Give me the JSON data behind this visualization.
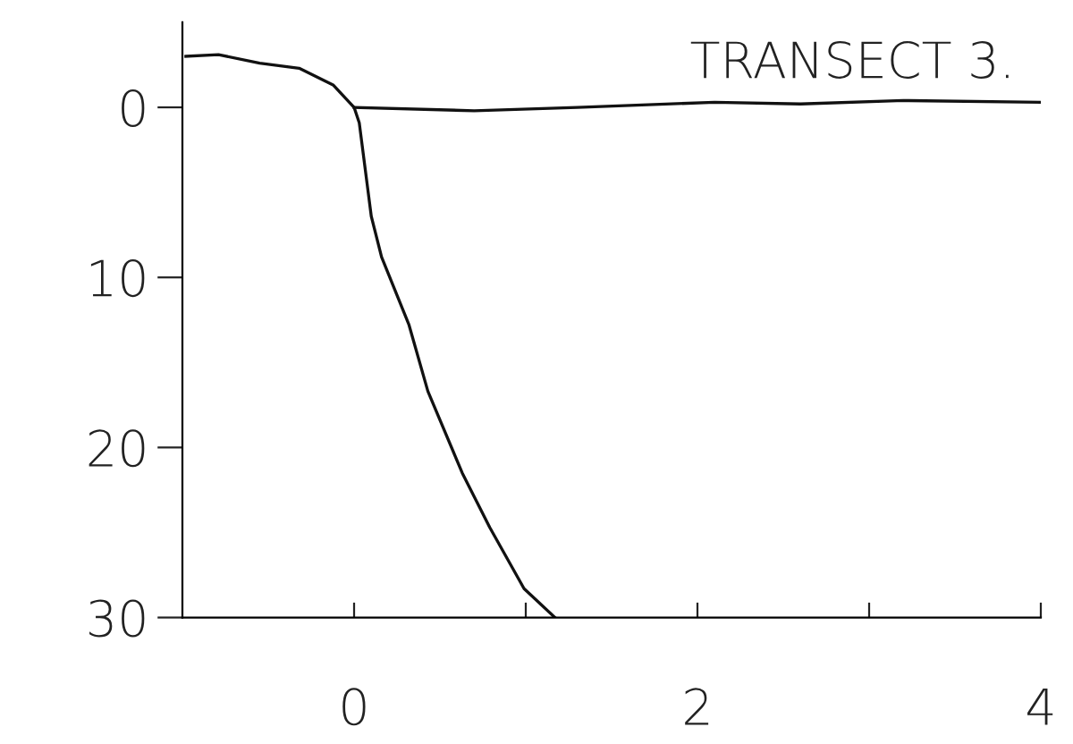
{
  "chart_data": {
    "type": "line",
    "title": "TRANSECT 3.",
    "series": [
      {
        "color": "#111111",
        "x": [
          -0.98,
          -0.79,
          -0.55,
          -0.32,
          -0.12,
          0,
          0.03,
          0.1,
          0.16,
          0.32,
          0.43,
          0.63,
          0.79,
          0.99,
          1.17
        ],
        "values": [
          -3.0,
          -3.1,
          -2.6,
          -2.3,
          -1.3,
          0,
          0.9,
          6.4,
          8.8,
          12.8,
          16.7,
          21.5,
          24.7,
          28.3,
          30
        ]
      },
      {
        "color": "#111111",
        "x": [
          0,
          0.7,
          1.3,
          2.1,
          2.6,
          3.2,
          4
        ],
        "values": [
          0,
          0.2,
          0,
          -0.3,
          -0.2,
          -0.4,
          -0.3
        ]
      }
    ],
    "xlim": [
      -1,
      4
    ],
    "xticks": [
      0,
      {
        "value": 1,
        "label": null
      },
      2,
      {
        "value": 3,
        "label": null
      },
      4
    ],
    "ylim": [
      30,
      -5
    ],
    "yticks": [
      0,
      10,
      20,
      30
    ],
    "grid": false,
    "legend": false
  }
}
